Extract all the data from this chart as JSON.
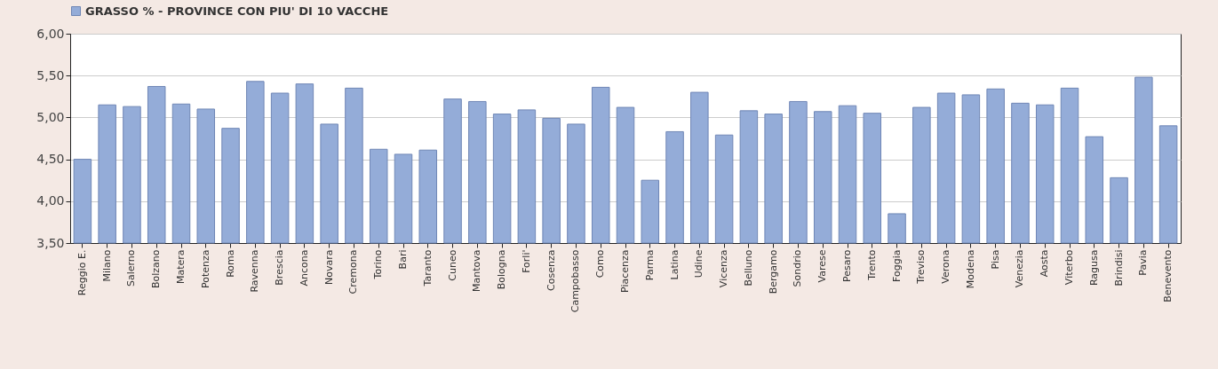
{
  "chart_data": {
    "type": "bar",
    "categories": [
      "Reggio E.",
      "Milano",
      "Salerno",
      "Bolzano",
      "Matera",
      "Potenza",
      "Roma",
      "Ravenna",
      "Brescia",
      "Ancona",
      "Novara",
      "Cremona",
      "Torino",
      "Bari",
      "Taranto",
      "Cuneo",
      "Mantova",
      "Bologna",
      "Forli'",
      "Cosenza",
      "Campobasso",
      "Como",
      "Piacenza",
      "Parma",
      "Latina",
      "Udine",
      "Vicenza",
      "Belluno",
      "Bergamo",
      "Sondrio",
      "Varese",
      "Pesaro",
      "Trento",
      "Foggia",
      "Treviso",
      "Verona",
      "Modena",
      "Pisa",
      "Venezia",
      "Aosta",
      "Viterbo",
      "Ragusa",
      "Brindisi",
      "Pavia",
      "Benevento"
    ],
    "series": [
      {
        "name": "GRASSO % - PROVINCE CON PIU' DI 10 VACCHE",
        "color": "#94acd8",
        "values": [
          4.5,
          5.15,
          5.13,
          5.37,
          5.16,
          5.1,
          4.87,
          5.43,
          5.29,
          5.4,
          4.92,
          5.35,
          4.62,
          4.56,
          4.61,
          5.22,
          5.19,
          5.04,
          5.09,
          4.99,
          4.92,
          5.36,
          5.12,
          4.25,
          4.83,
          5.3,
          4.79,
          5.08,
          5.04,
          5.19,
          5.07,
          5.14,
          5.05,
          3.85,
          5.12,
          5.29,
          5.27,
          5.34,
          5.17,
          5.15,
          5.35,
          4.77,
          4.28,
          5.48,
          4.9
        ]
      }
    ],
    "ylim": [
      3.5,
      6
    ],
    "yticks": [
      {
        "value": 3.5,
        "label": "3,50"
      },
      {
        "value": 4,
        "label": "4,00"
      },
      {
        "value": 4.5,
        "label": "4,50"
      },
      {
        "value": 5,
        "label": "5,00"
      },
      {
        "value": 5.5,
        "label": "5,50"
      },
      {
        "value": 6,
        "label": "6,00"
      }
    ],
    "grid": "y",
    "legend": "top"
  }
}
